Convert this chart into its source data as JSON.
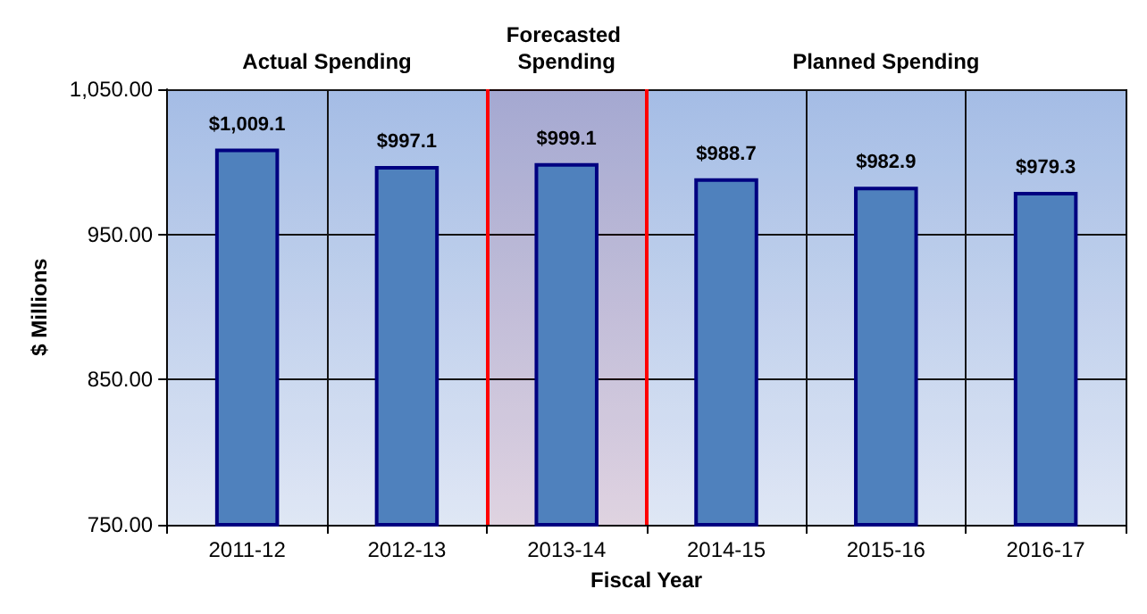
{
  "chart_data": {
    "type": "bar",
    "xlabel": "Fiscal Year",
    "ylabel": "$ Millions",
    "categories": [
      "2011-12",
      "2012-13",
      "2013-14",
      "2014-15",
      "2015-16",
      "2016-17"
    ],
    "values": [
      1009.1,
      997.1,
      999.1,
      988.7,
      982.9,
      979.3
    ],
    "value_labels": [
      "$1,009.1",
      "$997.1",
      "$999.1",
      "$988.7",
      "$982.9",
      "$979.3"
    ],
    "color": "#4f81bd",
    "ylim": [
      750,
      1050
    ],
    "yticks": [
      {
        "value": 750,
        "label": "750.00"
      },
      {
        "value": 850,
        "label": "850.00"
      },
      {
        "value": 950,
        "label": "950.00"
      },
      {
        "value": 1050,
        "label": "1,050.00"
      }
    ],
    "bands": [
      {
        "axis": "x",
        "from": "2011-12",
        "to": "2012-13",
        "label": "Actual Spending"
      },
      {
        "axis": "x",
        "from": "2013-14",
        "to": "2013-14",
        "label": "Forecasted Spending",
        "color": "#ff0000"
      },
      {
        "axis": "x",
        "from": "2014-15",
        "to": "2016-17",
        "label": "Planned Spending"
      }
    ],
    "grid": true
  }
}
